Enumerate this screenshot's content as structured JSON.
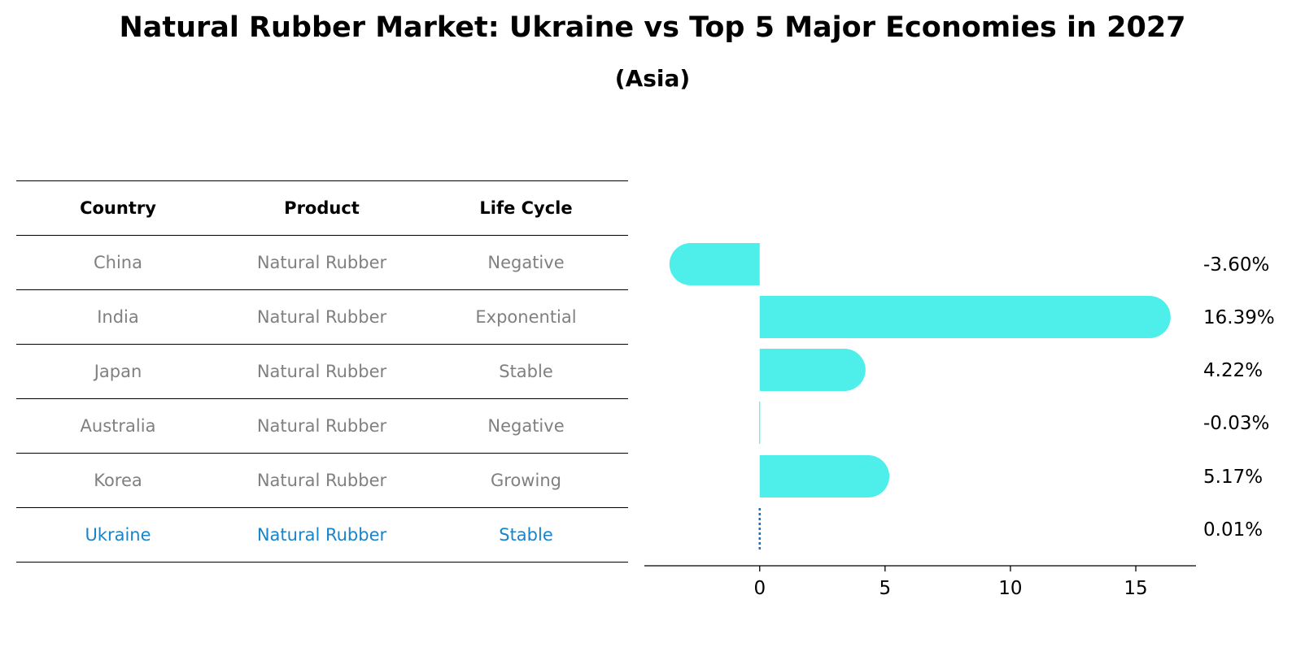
{
  "header": {
    "title": "Natural Rubber Market: Ukraine vs Top 5 Major Economies in 2027",
    "subtitle": "(Asia)"
  },
  "table": {
    "columns": [
      "Country",
      "Product",
      "Life Cycle"
    ],
    "rows": [
      [
        "China",
        "Natural Rubber",
        "Negative"
      ],
      [
        "India",
        "Natural Rubber",
        "Exponential"
      ],
      [
        "Japan",
        "Natural Rubber",
        "Stable"
      ],
      [
        "Australia",
        "Natural Rubber",
        "Negative"
      ],
      [
        "Korea",
        "Natural Rubber",
        "Growing"
      ],
      [
        "Ukraine",
        "Natural Rubber",
        "Stable"
      ]
    ]
  },
  "chart_data": {
    "type": "bar",
    "orientation": "horizontal",
    "categories": [
      "China",
      "India",
      "Japan",
      "Australia",
      "Korea",
      "Ukraine"
    ],
    "values": [
      -3.6,
      16.39,
      4.22,
      -0.03,
      5.17,
      0.01
    ],
    "value_labels": [
      "-3.60%",
      "16.39%",
      "4.22%",
      "-0.03%",
      "5.17%",
      "0.01%"
    ],
    "highlight": "Ukraine",
    "xlim": [
      -4.6,
      17.4
    ],
    "xticks": [
      0,
      5,
      10,
      15
    ],
    "xlabel": "",
    "ylabel": "",
    "colors": {
      "bar": "#4eeeea",
      "highlight": "#1a6fc8",
      "axis": "#000000"
    }
  }
}
